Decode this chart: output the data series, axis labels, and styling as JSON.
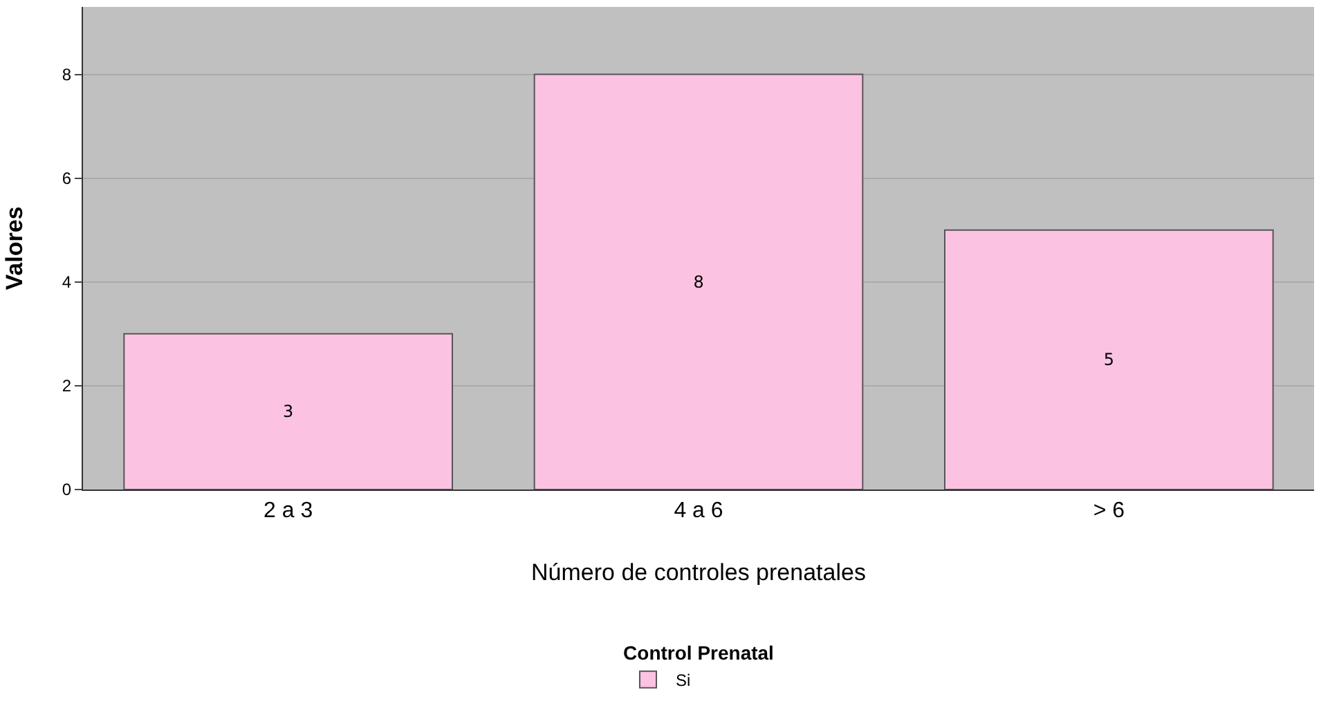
{
  "chart_data": {
    "type": "bar",
    "xlabel": "Número de controles prenatales",
    "ylabel": "Valores",
    "legend_title": "Control Prenatal",
    "categories": [
      "2 a 3",
      "4 a 6",
      "> 6"
    ],
    "series": [
      {
        "name": "Si",
        "color": "#fcc2e2",
        "values": [
          3,
          8,
          5
        ]
      }
    ],
    "ylim": [
      0,
      9.3
    ],
    "yticks": [
      0,
      2,
      4,
      6,
      8
    ],
    "grid": "y",
    "data_labels": true,
    "legend": "bottom"
  }
}
